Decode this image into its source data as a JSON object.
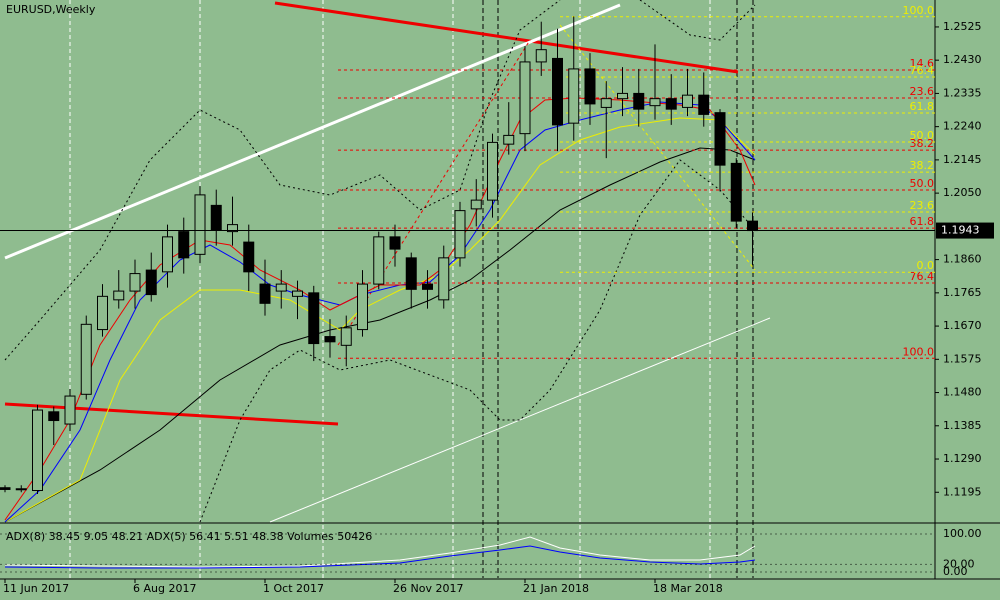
{
  "chart_data": {
    "type": "candlestick",
    "title": "EURUSD,Weekly",
    "categories": [
      "11 Jun 2017",
      null,
      null,
      null,
      null,
      null,
      null,
      null,
      "6 Aug 2017",
      null,
      null,
      null,
      null,
      null,
      null,
      null,
      "1 Oct 2017",
      null,
      null,
      null,
      null,
      null,
      null,
      null,
      "26 Nov 2017",
      null,
      null,
      null,
      null,
      null,
      null,
      null,
      "21 Jan 2018",
      null,
      null,
      null,
      null,
      null,
      null,
      null,
      "18 Mar 2018",
      null,
      null,
      null,
      null,
      null,
      null
    ],
    "open": [
      1.1208,
      1.1205,
      1.12,
      1.1425,
      1.139,
      1.1475,
      1.166,
      1.1745,
      1.177,
      1.183,
      1.1825,
      1.194,
      1.1875,
      1.2015,
      1.194,
      1.191,
      1.179,
      1.177,
      1.1755,
      1.1765,
      1.164,
      1.1615,
      1.166,
      1.179,
      1.1925,
      1.1865,
      1.179,
      1.1745,
      1.1865,
      1.2005,
      1.203,
      1.219,
      1.222,
      1.2425,
      1.2435,
      1.225,
      1.2405,
      1.2295,
      1.232,
      1.2335,
      1.23,
      1.232,
      1.2295,
      1.233,
      1.228,
      1.2135,
      1.197
    ],
    "high": [
      1.1215,
      1.1215,
      1.1445,
      1.144,
      1.149,
      1.17,
      1.179,
      1.183,
      1.186,
      1.188,
      1.196,
      1.198,
      1.207,
      1.206,
      1.204,
      1.196,
      1.186,
      1.183,
      1.18,
      1.1785,
      1.169,
      1.17,
      1.183,
      1.194,
      1.196,
      1.188,
      1.183,
      1.19,
      1.2025,
      1.209,
      1.222,
      1.231,
      1.247,
      1.254,
      1.252,
      1.2555,
      1.245,
      1.237,
      1.241,
      1.2405,
      1.2475,
      1.239,
      1.2405,
      1.2395,
      1.229,
      1.215,
      1.1995
    ],
    "low": [
      1.1195,
      1.1195,
      1.119,
      1.133,
      1.137,
      1.146,
      1.164,
      1.172,
      1.172,
      1.174,
      1.178,
      1.182,
      1.185,
      1.19,
      1.19,
      1.177,
      1.17,
      1.172,
      1.169,
      1.157,
      1.158,
      1.1555,
      1.164,
      1.1775,
      1.184,
      1.172,
      1.172,
      1.172,
      1.184,
      1.1955,
      1.198,
      1.216,
      1.217,
      1.2385,
      1.217,
      1.22,
      1.2245,
      1.215,
      1.227,
      1.224,
      1.226,
      1.2245,
      1.227,
      1.224,
      1.2055,
      1.195,
      1.1845
    ],
    "close": [
      1.1203,
      1.1203,
      1.143,
      1.14,
      1.147,
      1.1675,
      1.1755,
      1.177,
      1.182,
      1.176,
      1.1925,
      1.1865,
      1.2045,
      1.1945,
      1.196,
      1.1825,
      1.1735,
      1.179,
      1.177,
      1.162,
      1.1625,
      1.1665,
      1.179,
      1.1925,
      1.189,
      1.1775,
      1.1775,
      1.1865,
      1.2,
      1.203,
      1.2195,
      1.2215,
      1.2425,
      1.246,
      1.2245,
      1.2405,
      1.2305,
      1.232,
      1.2335,
      1.229,
      1.232,
      1.229,
      1.233,
      1.2275,
      1.213,
      1.197,
      1.1943
    ],
    "up_color": "#8fbc8f",
    "down_color": "#000000",
    "ylim": [
      1.111,
      1.2602
    ],
    "yticks": [
      1.2525,
      {
        "value": 1.243,
        "label": "1.2430"
      },
      1.2335,
      {
        "value": 1.224,
        "label": "1.2240"
      },
      1.2145,
      {
        "value": 1.205,
        "label": "1.2050"
      },
      {
        "value": 1.186,
        "label": "1.1860"
      },
      1.1765,
      {
        "value": 1.167,
        "label": "1.1670"
      },
      1.1575,
      {
        "value": 1.148,
        "label": "1.1480"
      },
      1.1385,
      {
        "value": 1.129,
        "label": "1.1290"
      },
      1.1195
    ],
    "current_price": 1.1943,
    "fib_red": [
      {
        "level": "14.6",
        "price": 1.2402
      },
      {
        "level": "23.6",
        "price": 1.2322
      },
      {
        "level": "38.2",
        "price": 1.2173
      },
      {
        "level": "50.0",
        "price": 1.2059
      },
      {
        "level": "61.8",
        "price": 1.195
      },
      {
        "level": "76.4",
        "price": 1.1793
      },
      {
        "level": "100.0",
        "price": 1.1578
      }
    ],
    "fib_yellow": [
      {
        "level": "100.0",
        "price": 1.2554
      },
      {
        "level": "76.4",
        "price": 1.2382
      },
      {
        "level": "61.8",
        "price": 1.2279
      },
      {
        "level": "50.0",
        "price": 1.2196
      },
      {
        "level": "38.2",
        "price": 1.211
      },
      {
        "level": "23.6",
        "price": 1.1996
      },
      {
        "level": "0.0",
        "price": 1.1824
      }
    ],
    "indicator_label": "ADX(8) 38.45 9.05 48.21 ADX(5) 56.41 5.51 48.38 Volumes 50426",
    "sub_ylim": [
      0,
      100
    ],
    "sub_yticks": [
      {
        "value": 100,
        "label": "100.00"
      },
      {
        "value": 20,
        "label": "20.00"
      },
      {
        "value": 0,
        "label": "0.00"
      }
    ]
  }
}
